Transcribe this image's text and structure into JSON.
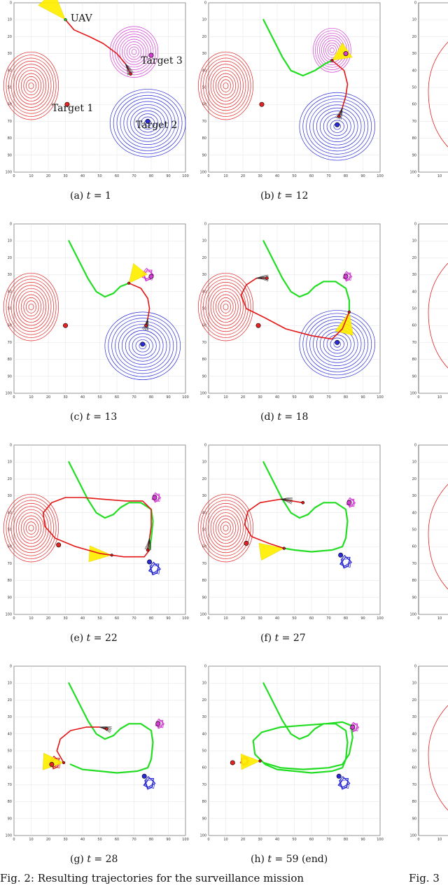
{
  "figure": {
    "caption_left": "Fig. 2: Resulting trajectories for the surveillance mission",
    "caption_right": "Fig. 3"
  },
  "axes": {
    "x_ticks": [
      "0",
      "10",
      "20",
      "30",
      "40",
      "50",
      "60",
      "70",
      "80",
      "90",
      "100"
    ],
    "y_ticks": [
      "0",
      "10",
      "20",
      "30",
      "40",
      "50",
      "60",
      "70",
      "80",
      "90",
      "100"
    ]
  },
  "colors": {
    "target1": "#e32222",
    "target2": "#2a2ad6",
    "target3": "#d43bd4",
    "trajectory": "#22dd22",
    "plan": "#e31515",
    "sensor": "#ffee00"
  },
  "annotations": {
    "uav": "UAV",
    "target1": "Target 1",
    "target2": "Target 2",
    "target3": "Target 3"
  },
  "panels": [
    {
      "label": "(a)",
      "t": "1",
      "suffix": ""
    },
    {
      "label": "(b)",
      "t": "12",
      "suffix": ""
    },
    {
      "label": "(c)",
      "t": "13",
      "suffix": ""
    },
    {
      "label": "(d)",
      "t": "18",
      "suffix": ""
    },
    {
      "label": "(e)",
      "t": "22",
      "suffix": ""
    },
    {
      "label": "(f)",
      "t": "27",
      "suffix": ""
    },
    {
      "label": "(g)",
      "t": "28",
      "suffix": ""
    },
    {
      "label": "(h)",
      "t": "59",
      "suffix": "(end)"
    }
  ],
  "chart_data": [
    {
      "type": "scatter",
      "panel": "(a)",
      "xlim": [
        0,
        100
      ],
      "ylim": [
        0,
        100
      ],
      "targets": [
        {
          "name": "Target 1",
          "x": 31,
          "y": 60
        },
        {
          "name": "Target 2",
          "x": 78,
          "y": 70
        },
        {
          "name": "Target 3",
          "x": 80,
          "y": 31
        }
      ],
      "uav": [
        30,
        10
      ],
      "trajectory": [],
      "plan": [
        [
          30,
          10
        ],
        [
          35,
          16
        ],
        [
          44,
          20
        ],
        [
          52,
          24
        ],
        [
          60,
          30
        ],
        [
          65,
          36
        ],
        [
          68,
          42
        ]
      ]
    },
    {
      "type": "scatter",
      "panel": "(b)",
      "xlim": [
        0,
        100
      ],
      "ylim": [
        0,
        100
      ],
      "targets": [
        {
          "name": "Target 1",
          "x": 31,
          "y": 60
        },
        {
          "name": "Target 2",
          "x": 75,
          "y": 72
        },
        {
          "name": "Target 3",
          "x": 80,
          "y": 30
        }
      ],
      "uav": [
        72,
        34
      ],
      "trajectory": [
        [
          32,
          10
        ],
        [
          38,
          22
        ],
        [
          43,
          32
        ],
        [
          48,
          40
        ],
        [
          55,
          43
        ],
        [
          62,
          40
        ],
        [
          68,
          36
        ],
        [
          72,
          34
        ]
      ],
      "plan": [
        [
          72,
          34
        ],
        [
          79,
          40
        ],
        [
          81,
          48
        ],
        [
          80,
          55
        ],
        [
          78,
          62
        ],
        [
          76,
          67
        ]
      ]
    },
    {
      "type": "scatter",
      "panel": "(c)",
      "xlim": [
        0,
        100
      ],
      "ylim": [
        0,
        100
      ],
      "targets": [
        {
          "name": "Target 1",
          "x": 30,
          "y": 60
        },
        {
          "name": "Target 2",
          "x": 75,
          "y": 71
        },
        {
          "name": "Target 3",
          "x": 80,
          "y": 31
        }
      ],
      "uav": [
        67,
        35
      ],
      "trajectory": [
        [
          32,
          10
        ],
        [
          38,
          22
        ],
        [
          43,
          32
        ],
        [
          48,
          40
        ],
        [
          53,
          43
        ],
        [
          58,
          41
        ],
        [
          62,
          37
        ],
        [
          67,
          35
        ]
      ],
      "plan": [
        [
          67,
          35
        ],
        [
          74,
          38
        ],
        [
          78,
          44
        ],
        [
          79,
          50
        ],
        [
          78,
          56
        ],
        [
          77,
          60
        ]
      ]
    },
    {
      "type": "scatter",
      "panel": "(d)",
      "xlim": [
        0,
        100
      ],
      "ylim": [
        0,
        100
      ],
      "targets": [
        {
          "name": "Target 1",
          "x": 29,
          "y": 60
        },
        {
          "name": "Target 2",
          "x": 75,
          "y": 70
        },
        {
          "name": "Target 3",
          "x": 80,
          "y": 31
        }
      ],
      "uav": [
        82,
        52
      ],
      "trajectory": [
        [
          32,
          10
        ],
        [
          38,
          22
        ],
        [
          43,
          32
        ],
        [
          48,
          40
        ],
        [
          53,
          43
        ],
        [
          58,
          41
        ],
        [
          62,
          37
        ],
        [
          67,
          34
        ],
        [
          74,
          34
        ],
        [
          80,
          38
        ],
        [
          82,
          45
        ],
        [
          82,
          52
        ]
      ],
      "plan": [
        [
          82,
          52
        ],
        [
          78,
          62
        ],
        [
          72,
          68
        ],
        [
          60,
          66
        ],
        [
          45,
          62
        ],
        [
          32,
          55
        ],
        [
          22,
          50
        ],
        [
          19,
          42
        ],
        [
          22,
          36
        ],
        [
          28,
          32
        ],
        [
          34,
          32
        ]
      ]
    },
    {
      "type": "scatter",
      "panel": "(e)",
      "xlim": [
        0,
        100
      ],
      "ylim": [
        0,
        100
      ],
      "targets": [
        {
          "name": "Target 1",
          "x": 26,
          "y": 59
        },
        {
          "name": "Target 2",
          "x": 79,
          "y": 69
        },
        {
          "name": "Target 3",
          "x": 82,
          "y": 31
        }
      ],
      "uav": [
        57,
        65
      ],
      "trajectory": [
        [
          32,
          10
        ],
        [
          38,
          22
        ],
        [
          43,
          32
        ],
        [
          48,
          40
        ],
        [
          53,
          43
        ],
        [
          58,
          41
        ],
        [
          62,
          37
        ],
        [
          67,
          34
        ],
        [
          74,
          34
        ],
        [
          80,
          38
        ],
        [
          81,
          45
        ],
        [
          80,
          55
        ],
        [
          79,
          62
        ]
      ],
      "plan": [
        [
          79,
          62
        ],
        [
          76,
          66
        ],
        [
          64,
          66
        ],
        [
          50,
          64
        ],
        [
          36,
          60
        ],
        [
          24,
          55
        ],
        [
          18,
          48
        ],
        [
          17,
          40
        ],
        [
          22,
          34
        ],
        [
          30,
          31
        ],
        [
          40,
          31
        ],
        [
          52,
          32
        ],
        [
          65,
          33
        ],
        [
          75,
          33
        ],
        [
          80,
          38
        ],
        [
          80,
          48
        ],
        [
          79,
          55
        ],
        [
          78,
          62
        ]
      ]
    },
    {
      "type": "scatter",
      "panel": "(f)",
      "xlim": [
        0,
        100
      ],
      "ylim": [
        0,
        100
      ],
      "targets": [
        {
          "name": "Target 1",
          "x": 22,
          "y": 58
        },
        {
          "name": "Target 2",
          "x": 77,
          "y": 65
        },
        {
          "name": "Target 3",
          "x": 82,
          "y": 34
        }
      ],
      "uav": [
        44,
        61
      ],
      "trajectory": [
        [
          32,
          10
        ],
        [
          38,
          22
        ],
        [
          43,
          32
        ],
        [
          48,
          40
        ],
        [
          53,
          43
        ],
        [
          58,
          41
        ],
        [
          62,
          37
        ],
        [
          67,
          34
        ],
        [
          74,
          34
        ],
        [
          80,
          38
        ],
        [
          81,
          45
        ],
        [
          80,
          55
        ],
        [
          78,
          60
        ],
        [
          72,
          62
        ],
        [
          60,
          63
        ],
        [
          50,
          62
        ],
        [
          44,
          61
        ]
      ],
      "plan": [
        [
          44,
          61
        ],
        [
          35,
          58
        ],
        [
          25,
          54
        ],
        [
          21,
          47
        ],
        [
          23,
          39
        ],
        [
          30,
          34
        ],
        [
          42,
          32
        ],
        [
          55,
          34
        ]
      ]
    },
    {
      "type": "scatter",
      "panel": "(g)",
      "xlim": [
        0,
        100
      ],
      "ylim": [
        0,
        100
      ],
      "targets": [
        {
          "name": "Target 1",
          "x": 22,
          "y": 58
        },
        {
          "name": "Target 2",
          "x": 76,
          "y": 65
        },
        {
          "name": "Target 3",
          "x": 84,
          "y": 34
        }
      ],
      "uav": [
        29,
        57
      ],
      "trajectory": [
        [
          32,
          10
        ],
        [
          38,
          22
        ],
        [
          43,
          32
        ],
        [
          48,
          40
        ],
        [
          53,
          43
        ],
        [
          58,
          41
        ],
        [
          62,
          37
        ],
        [
          67,
          34
        ],
        [
          74,
          34
        ],
        [
          80,
          38
        ],
        [
          81,
          45
        ],
        [
          80,
          55
        ],
        [
          78,
          60
        ],
        [
          72,
          62
        ],
        [
          60,
          63
        ],
        [
          50,
          62
        ],
        [
          40,
          61
        ],
        [
          33,
          58
        ]
      ],
      "plan": [
        [
          29,
          57
        ],
        [
          25,
          50
        ],
        [
          27,
          43
        ],
        [
          33,
          38
        ],
        [
          42,
          36
        ],
        [
          50,
          36
        ],
        [
          54,
          37
        ]
      ]
    },
    {
      "type": "scatter",
      "panel": "(h)",
      "xlim": [
        0,
        100
      ],
      "ylim": [
        0,
        100
      ],
      "targets": [
        {
          "name": "Target 1",
          "x": 14,
          "y": 57
        },
        {
          "name": "Target 2",
          "x": 76,
          "y": 65
        },
        {
          "name": "Target 3",
          "x": 84,
          "y": 36
        }
      ],
      "uav": [
        30,
        56
      ],
      "trajectory": [
        [
          32,
          10
        ],
        [
          38,
          22
        ],
        [
          43,
          32
        ],
        [
          48,
          40
        ],
        [
          53,
          43
        ],
        [
          58,
          41
        ],
        [
          62,
          37
        ],
        [
          67,
          34
        ],
        [
          74,
          34
        ],
        [
          80,
          38
        ],
        [
          81,
          45
        ],
        [
          80,
          55
        ],
        [
          78,
          60
        ],
        [
          72,
          62
        ],
        [
          60,
          63
        ],
        [
          50,
          62
        ],
        [
          40,
          61
        ],
        [
          33,
          58
        ],
        [
          27,
          52
        ],
        [
          26,
          44
        ],
        [
          31,
          39
        ],
        [
          42,
          36
        ],
        [
          55,
          35
        ],
        [
          68,
          34
        ],
        [
          78,
          33
        ],
        [
          83,
          35
        ],
        [
          84,
          42
        ],
        [
          82,
          52
        ],
        [
          78,
          58
        ],
        [
          70,
          60
        ],
        [
          55,
          61
        ],
        [
          42,
          60
        ],
        [
          32,
          57
        ]
      ],
      "plan": []
    }
  ]
}
